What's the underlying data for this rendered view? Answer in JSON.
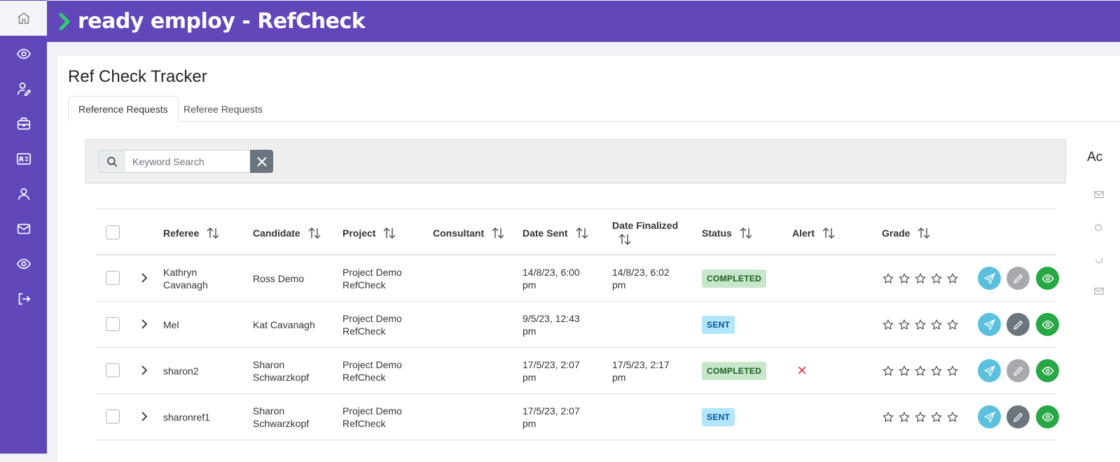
{
  "brand": {
    "title": "ready employ - RefCheck",
    "accent": "#6247bb",
    "chevron_color": "#2ecc71"
  },
  "sidebar": {
    "items": [
      {
        "icon": "home-icon"
      },
      {
        "icon": "eye-icon"
      },
      {
        "icon": "user-edit-icon"
      },
      {
        "icon": "briefcase-icon"
      },
      {
        "icon": "id-card-icon"
      },
      {
        "icon": "user-icon"
      },
      {
        "icon": "mail-icon"
      },
      {
        "icon": "eye-icon"
      },
      {
        "icon": "logout-icon"
      }
    ]
  },
  "page": {
    "title": "Ref Check Tracker",
    "tabs": [
      {
        "label": "Reference Requests",
        "active": true
      },
      {
        "label": "Referee Requests",
        "active": false
      }
    ]
  },
  "search": {
    "placeholder": "Keyword Search",
    "value": ""
  },
  "right_panel": {
    "heading_partial": "Ac"
  },
  "table": {
    "columns": {
      "referee": "Referee",
      "candidate": "Candidate",
      "project": "Project",
      "consultant": "Consultant",
      "date_sent": "Date Sent",
      "date_finalized": "Date Finalized",
      "status": "Status",
      "alert": "Alert",
      "grade": "Grade"
    },
    "rows": [
      {
        "referee": "Kathryn Cavanagh",
        "candidate": "Ross Demo",
        "project": "Project Demo RefCheck",
        "consultant": "",
        "date_sent": "14/8/23, 6:00 pm",
        "date_finalized": "14/8/23, 6:02 pm",
        "status": "COMPLETED",
        "alert": "",
        "grade": 0
      },
      {
        "referee": "Mel",
        "candidate": "Kat Cavanagh",
        "project": "Project Demo RefCheck",
        "consultant": "",
        "date_sent": "9/5/23, 12:43 pm",
        "date_finalized": "",
        "status": "SENT",
        "alert": "",
        "grade": 0
      },
      {
        "referee": "sharon2",
        "candidate": "Sharon Schwarzkopf",
        "project": "Project Demo RefCheck",
        "consultant": "",
        "date_sent": "17/5/23, 2:07 pm",
        "date_finalized": "17/5/23, 2:17 pm",
        "status": "COMPLETED",
        "alert": "×",
        "grade": 0
      },
      {
        "referee": "sharonref1",
        "candidate": "Sharon Schwarzkopf",
        "project": "Project Demo RefCheck",
        "consultant": "",
        "date_sent": "17/5/23, 2:07 pm",
        "date_finalized": "",
        "status": "SENT",
        "alert": "",
        "grade": 0
      }
    ]
  },
  "colors": {
    "send": "#5bc0de",
    "edit_disabled": "#a7a9ad",
    "edit_enabled": "#6c757d",
    "view": "#28a745",
    "alert": "#dc3545"
  }
}
